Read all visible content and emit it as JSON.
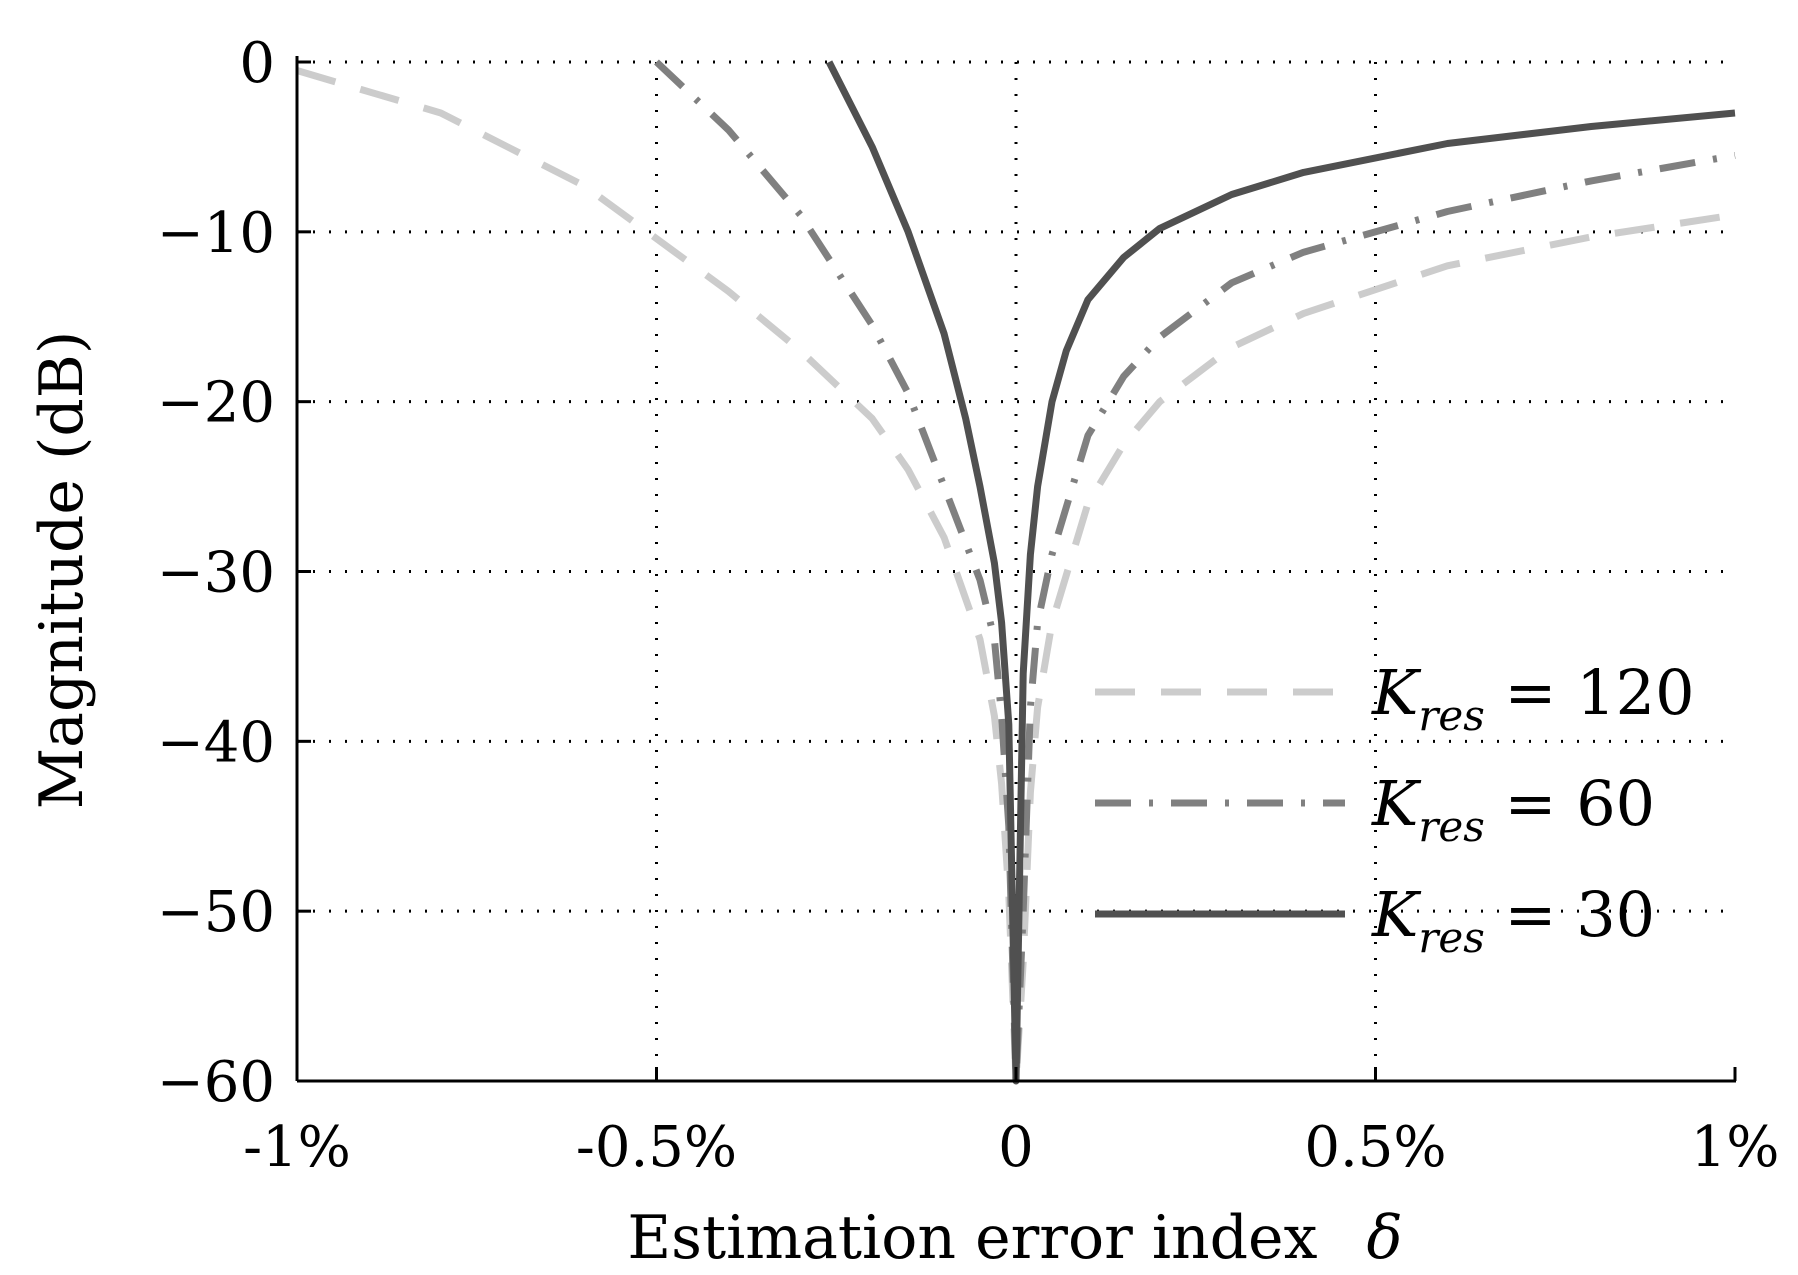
{
  "chart_data": {
    "type": "line",
    "title": "",
    "xlabel": "Estimation error index",
    "xlabel_symbol": "δ",
    "ylabel": "Magnitude (dB)",
    "xlim": [
      -1,
      1
    ],
    "ylim": [
      -60,
      0
    ],
    "x_unit": "%",
    "grid": true,
    "grid_style": "dotted",
    "legend_position": "lower-right",
    "xticks": [
      -1,
      -0.5,
      0,
      0.5,
      1
    ],
    "xtick_labels": [
      "-1%",
      "-0.5%",
      "0",
      "0.5%",
      "1%"
    ],
    "yticks": [
      0,
      -10,
      -20,
      -30,
      -40,
      -50,
      -60
    ],
    "ytick_labels": [
      "0",
      "−10",
      "−20",
      "−30",
      "−40",
      "−50",
      "−60"
    ],
    "series": [
      {
        "name": "K_res = 120",
        "legend_main": "K",
        "legend_sub": "res",
        "legend_rest": " = 120",
        "color": "#cccccc",
        "style": "dashed",
        "x": [
          -1.0,
          -0.8,
          -0.6,
          -0.4,
          -0.3,
          -0.2,
          -0.15,
          -0.1,
          -0.05,
          -0.03,
          -0.02,
          -0.01,
          0,
          0.01,
          0.02,
          0.03,
          0.05,
          0.1,
          0.15,
          0.2,
          0.3,
          0.4,
          0.6,
          0.8,
          1.0
        ],
        "values": [
          -0.5,
          -3.0,
          -7.3,
          -13.5,
          -17.0,
          -21.0,
          -24.0,
          -28.0,
          -34.0,
          -38.5,
          -42.5,
          -49.0,
          -60,
          -53.0,
          -43.0,
          -38.0,
          -33.0,
          -26.0,
          -22.5,
          -20.0,
          -16.8,
          -14.8,
          -12.0,
          -10.3,
          -9.0
        ]
      },
      {
        "name": "K_res = 60",
        "legend_main": "K",
        "legend_sub": "res",
        "legend_rest": " = 60",
        "color": "#808080",
        "style": "dashdot",
        "x": [
          -0.5,
          -0.4,
          -0.3,
          -0.2,
          -0.15,
          -0.1,
          -0.05,
          -0.03,
          -0.02,
          -0.01,
          0,
          0.01,
          0.02,
          0.03,
          0.05,
          0.1,
          0.15,
          0.2,
          0.3,
          0.4,
          0.6,
          0.8,
          1.0
        ],
        "values": [
          0.0,
          -4.0,
          -9.0,
          -15.5,
          -19.5,
          -25.0,
          -30.5,
          -34.0,
          -38.5,
          -45.0,
          -60,
          -50.0,
          -38.0,
          -33.0,
          -29.0,
          -22.0,
          -18.5,
          -16.2,
          -13.0,
          -11.2,
          -8.8,
          -7.0,
          -5.5
        ]
      },
      {
        "name": "K_res = 30",
        "legend_main": "K",
        "legend_sub": "res",
        "legend_rest": " = 30",
        "color": "#505050",
        "style": "solid",
        "x": [
          -0.26,
          -0.2,
          -0.15,
          -0.1,
          -0.07,
          -0.05,
          -0.03,
          -0.02,
          -0.01,
          0,
          0.01,
          0.02,
          0.03,
          0.05,
          0.07,
          0.1,
          0.15,
          0.2,
          0.3,
          0.4,
          0.6,
          0.8,
          1.0
        ],
        "values": [
          0.0,
          -5.0,
          -10.0,
          -16.0,
          -21.0,
          -25.0,
          -29.5,
          -33.0,
          -39.0,
          -60,
          -36.0,
          -29.0,
          -25.0,
          -20.0,
          -17.0,
          -14.0,
          -11.5,
          -9.8,
          -7.8,
          -6.5,
          -4.8,
          -3.8,
          -3.0
        ]
      }
    ]
  }
}
